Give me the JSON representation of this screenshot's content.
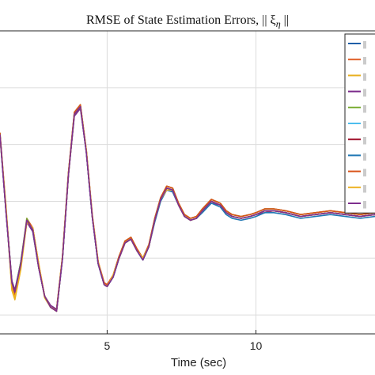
{
  "chart_data": {
    "type": "line",
    "title": "RMSE of State Estimation Errors, || ξ",
    "title_subscript": "η",
    "title_suffix": " ||",
    "xlabel": "Time (sec)",
    "ylabel": "",
    "xlim": [
      1.4,
      14.0
    ],
    "ylim": [
      -0.1,
      1.5
    ],
    "xticks": [
      5,
      10
    ],
    "xtick_labels": [
      "5",
      "10"
    ],
    "yticks": [
      0.0,
      0.3,
      0.6,
      0.9,
      1.2
    ],
    "grid": true,
    "legend_position": "top-right",
    "legend_labels": [
      "||",
      "||",
      "||",
      "||",
      "||",
      "||",
      "||",
      "||",
      "||",
      "||",
      "||"
    ],
    "x": [
      1.4,
      1.6,
      1.8,
      1.9,
      2.1,
      2.3,
      2.5,
      2.7,
      2.9,
      3.1,
      3.3,
      3.5,
      3.7,
      3.9,
      4.1,
      4.3,
      4.5,
      4.7,
      4.9,
      5.0,
      5.2,
      5.4,
      5.6,
      5.8,
      6.0,
      6.2,
      6.4,
      6.6,
      6.8,
      7.0,
      7.2,
      7.4,
      7.6,
      7.8,
      8.0,
      8.2,
      8.5,
      8.8,
      9.0,
      9.2,
      9.5,
      9.8,
      10.0,
      10.3,
      10.6,
      11.0,
      11.5,
      12.0,
      12.5,
      13.0,
      13.5,
      14.0
    ],
    "series": [
      {
        "color": "#1f5fa8",
        "values": [
          0.95,
          0.55,
          0.18,
          0.13,
          0.28,
          0.5,
          0.44,
          0.25,
          0.1,
          0.04,
          0.02,
          0.3,
          0.74,
          1.06,
          1.1,
          0.86,
          0.52,
          0.27,
          0.16,
          0.15,
          0.2,
          0.3,
          0.38,
          0.4,
          0.34,
          0.29,
          0.36,
          0.5,
          0.61,
          0.67,
          0.66,
          0.58,
          0.52,
          0.5,
          0.51,
          0.55,
          0.6,
          0.58,
          0.54,
          0.52,
          0.51,
          0.52,
          0.53,
          0.55,
          0.55,
          0.54,
          0.52,
          0.53,
          0.54,
          0.53,
          0.52,
          0.53
        ]
      },
      {
        "color": "#e0602a",
        "values": [
          0.95,
          0.56,
          0.16,
          0.11,
          0.27,
          0.51,
          0.46,
          0.26,
          0.1,
          0.04,
          0.03,
          0.31,
          0.75,
          1.07,
          1.11,
          0.87,
          0.53,
          0.28,
          0.17,
          0.16,
          0.21,
          0.31,
          0.39,
          0.41,
          0.35,
          0.3,
          0.37,
          0.51,
          0.62,
          0.68,
          0.67,
          0.59,
          0.53,
          0.51,
          0.52,
          0.56,
          0.61,
          0.59,
          0.55,
          0.53,
          0.52,
          0.53,
          0.54,
          0.56,
          0.56,
          0.55,
          0.53,
          0.54,
          0.55,
          0.54,
          0.53,
          0.54
        ]
      },
      {
        "color": "#e8b020",
        "values": [
          0.94,
          0.57,
          0.13,
          0.08,
          0.24,
          0.49,
          0.46,
          0.27,
          0.09,
          0.04,
          0.03,
          0.31,
          0.74,
          1.06,
          1.1,
          0.87,
          0.52,
          0.28,
          0.16,
          0.15,
          0.21,
          0.3,
          0.38,
          0.4,
          0.34,
          0.3,
          0.36,
          0.5,
          0.61,
          0.67,
          0.66,
          0.58,
          0.52,
          0.5,
          0.51,
          0.55,
          0.6,
          0.58,
          0.54,
          0.52,
          0.51,
          0.52,
          0.53,
          0.55,
          0.55,
          0.54,
          0.52,
          0.53,
          0.54,
          0.53,
          0.52,
          0.53
        ]
      },
      {
        "color": "#7a2a8a",
        "values": [
          0.95,
          0.55,
          0.18,
          0.13,
          0.27,
          0.49,
          0.44,
          0.25,
          0.1,
          0.05,
          0.03,
          0.3,
          0.74,
          1.05,
          1.09,
          0.86,
          0.52,
          0.27,
          0.16,
          0.15,
          0.2,
          0.3,
          0.38,
          0.4,
          0.34,
          0.29,
          0.36,
          0.5,
          0.61,
          0.66,
          0.65,
          0.58,
          0.52,
          0.5,
          0.51,
          0.55,
          0.59,
          0.58,
          0.54,
          0.52,
          0.51,
          0.52,
          0.53,
          0.54,
          0.55,
          0.54,
          0.52,
          0.53,
          0.54,
          0.53,
          0.52,
          0.53
        ]
      },
      {
        "color": "#78ac30",
        "values": [
          0.96,
          0.56,
          0.17,
          0.12,
          0.28,
          0.51,
          0.45,
          0.25,
          0.1,
          0.04,
          0.02,
          0.31,
          0.75,
          1.07,
          1.11,
          0.87,
          0.52,
          0.27,
          0.16,
          0.15,
          0.21,
          0.31,
          0.39,
          0.41,
          0.35,
          0.3,
          0.37,
          0.51,
          0.62,
          0.68,
          0.67,
          0.59,
          0.53,
          0.51,
          0.52,
          0.56,
          0.61,
          0.59,
          0.55,
          0.53,
          0.52,
          0.53,
          0.54,
          0.56,
          0.56,
          0.55,
          0.53,
          0.54,
          0.55,
          0.54,
          0.53,
          0.54
        ]
      },
      {
        "color": "#4dbeee",
        "values": [
          0.94,
          0.55,
          0.16,
          0.11,
          0.27,
          0.5,
          0.45,
          0.25,
          0.1,
          0.04,
          0.02,
          0.3,
          0.74,
          1.06,
          1.1,
          0.86,
          0.52,
          0.27,
          0.16,
          0.15,
          0.2,
          0.3,
          0.38,
          0.4,
          0.34,
          0.29,
          0.36,
          0.5,
          0.61,
          0.67,
          0.66,
          0.58,
          0.52,
          0.5,
          0.51,
          0.55,
          0.6,
          0.58,
          0.54,
          0.52,
          0.51,
          0.52,
          0.53,
          0.55,
          0.55,
          0.54,
          0.52,
          0.53,
          0.54,
          0.53,
          0.52,
          0.53
        ]
      },
      {
        "color": "#a2142f",
        "values": [
          0.95,
          0.55,
          0.17,
          0.12,
          0.27,
          0.5,
          0.45,
          0.25,
          0.1,
          0.04,
          0.02,
          0.3,
          0.74,
          1.06,
          1.1,
          0.86,
          0.52,
          0.27,
          0.16,
          0.15,
          0.2,
          0.3,
          0.38,
          0.4,
          0.34,
          0.29,
          0.36,
          0.5,
          0.61,
          0.67,
          0.66,
          0.58,
          0.52,
          0.5,
          0.51,
          0.55,
          0.6,
          0.58,
          0.54,
          0.52,
          0.51,
          0.52,
          0.53,
          0.55,
          0.55,
          0.54,
          0.52,
          0.53,
          0.54,
          0.53,
          0.52,
          0.53
        ]
      },
      {
        "color": "#1f77b4",
        "values": [
          0.95,
          0.56,
          0.15,
          0.1,
          0.26,
          0.5,
          0.45,
          0.26,
          0.1,
          0.04,
          0.02,
          0.3,
          0.74,
          1.06,
          1.1,
          0.86,
          0.52,
          0.27,
          0.16,
          0.15,
          0.2,
          0.3,
          0.38,
          0.4,
          0.34,
          0.29,
          0.36,
          0.49,
          0.6,
          0.66,
          0.65,
          0.58,
          0.52,
          0.5,
          0.51,
          0.54,
          0.59,
          0.57,
          0.53,
          0.51,
          0.5,
          0.51,
          0.52,
          0.54,
          0.54,
          0.53,
          0.51,
          0.52,
          0.53,
          0.52,
          0.51,
          0.52
        ]
      },
      {
        "color": "#d95319",
        "values": [
          0.96,
          0.57,
          0.15,
          0.1,
          0.26,
          0.5,
          0.46,
          0.27,
          0.1,
          0.04,
          0.02,
          0.31,
          0.75,
          1.07,
          1.11,
          0.87,
          0.53,
          0.28,
          0.17,
          0.16,
          0.21,
          0.31,
          0.39,
          0.41,
          0.35,
          0.3,
          0.37,
          0.51,
          0.62,
          0.68,
          0.67,
          0.59,
          0.53,
          0.51,
          0.52,
          0.56,
          0.61,
          0.59,
          0.55,
          0.53,
          0.52,
          0.53,
          0.54,
          0.56,
          0.56,
          0.55,
          0.53,
          0.54,
          0.55,
          0.54,
          0.53,
          0.54
        ]
      },
      {
        "color": "#edb120",
        "values": [
          0.94,
          0.58,
          0.14,
          0.09,
          0.25,
          0.49,
          0.46,
          0.27,
          0.1,
          0.04,
          0.02,
          0.31,
          0.74,
          1.06,
          1.1,
          0.87,
          0.53,
          0.28,
          0.16,
          0.15,
          0.21,
          0.3,
          0.38,
          0.4,
          0.34,
          0.3,
          0.36,
          0.5,
          0.61,
          0.66,
          0.66,
          0.58,
          0.52,
          0.5,
          0.51,
          0.55,
          0.6,
          0.58,
          0.54,
          0.52,
          0.51,
          0.52,
          0.53,
          0.55,
          0.55,
          0.54,
          0.52,
          0.53,
          0.54,
          0.53,
          0.52,
          0.53
        ]
      },
      {
        "color": "#7e2f8e",
        "values": [
          0.95,
          0.55,
          0.17,
          0.12,
          0.27,
          0.5,
          0.45,
          0.25,
          0.1,
          0.04,
          0.02,
          0.3,
          0.74,
          1.06,
          1.1,
          0.86,
          0.52,
          0.27,
          0.16,
          0.15,
          0.2,
          0.3,
          0.38,
          0.4,
          0.34,
          0.29,
          0.36,
          0.5,
          0.61,
          0.67,
          0.66,
          0.58,
          0.52,
          0.5,
          0.51,
          0.55,
          0.6,
          0.58,
          0.54,
          0.52,
          0.51,
          0.52,
          0.53,
          0.55,
          0.55,
          0.54,
          0.52,
          0.53,
          0.54,
          0.53,
          0.52,
          0.53
        ]
      }
    ]
  }
}
